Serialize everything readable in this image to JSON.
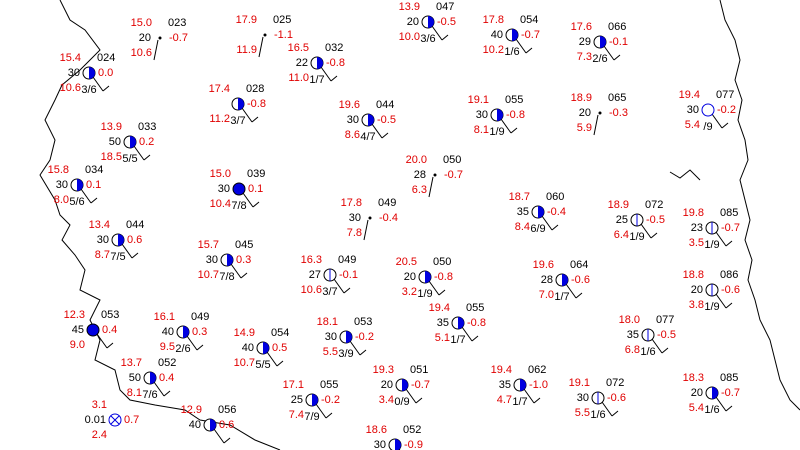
{
  "stations": [
    {
      "id": "023",
      "temp": "15.0",
      "pressure": "20",
      "dew": "10.6",
      "tendency": "-0.7"
    },
    {
      "id": "025",
      "temp": "17.9",
      "dew": "11.9",
      "tendency": "-1.1"
    },
    {
      "id": "024",
      "temp": "15.4",
      "pressure": "30",
      "dew": "10.6",
      "tendency": "0.0",
      "cloud": "3/6"
    },
    {
      "id": "032",
      "temp": "16.5",
      "pressure": "22",
      "dew": "11.0",
      "tendency": "-0.8",
      "cloud": "1/7"
    },
    {
      "id": "028",
      "temp": "17.4",
      "dew": "11.2",
      "tendency": "-0.8",
      "cloud": "3/7"
    },
    {
      "id": "047",
      "temp": "13.9",
      "pressure": "20",
      "dew": "10.0",
      "tendency": "-0.5",
      "cloud": "3/6"
    },
    {
      "id": "054",
      "temp": "17.8",
      "pressure": "40",
      "dew": "10.2",
      "tendency": "-0.7",
      "cloud": "1/6"
    },
    {
      "id": "066",
      "temp": "17.6",
      "pressure": "29",
      "dew": "7.3",
      "tendency": "-0.1",
      "cloud": "2/6"
    },
    {
      "id": "044",
      "temp": "19.6",
      "pressure": "30",
      "dew": "8.6",
      "tendency": "-0.5",
      "cloud": "4/7"
    },
    {
      "id": "055",
      "temp": "19.1",
      "pressure": "30",
      "dew": "8.1",
      "tendency": "-0.8",
      "cloud": "1/9"
    },
    {
      "id": "065",
      "temp": "18.9",
      "pressure": "20",
      "dew": "5.9",
      "tendency": "-0.3"
    },
    {
      "id": "077",
      "temp": "19.4",
      "pressure": "30",
      "dew": "5.4",
      "tendency": "-0.2",
      "cloud": "/9"
    },
    {
      "id": "033",
      "temp": "13.9",
      "pressure": "50",
      "dew": "18.5",
      "tendency": "0.2",
      "cloud": "5/5"
    },
    {
      "id": "034",
      "temp": "15.8",
      "pressure": "30",
      "dew": "8.0",
      "tendency": "0.1",
      "cloud": "5/6"
    },
    {
      "id": "039",
      "temp": "15.0",
      "pressure": "30",
      "dew": "10.4",
      "tendency": "0.1",
      "cloud": "7/8"
    },
    {
      "id": "050",
      "temp": "20.0",
      "pressure": "28",
      "dew": "6.3",
      "tendency": "-0.7"
    },
    {
      "id": "049",
      "temp": "17.8",
      "pressure": "30",
      "dew": "7.8",
      "tendency": "-0.4"
    },
    {
      "id": "060",
      "temp": "18.7",
      "pressure": "35",
      "dew": "8.4",
      "tendency": "-0.4",
      "cloud": "6/9"
    },
    {
      "id": "072",
      "temp": "18.9",
      "pressure": "25",
      "dew": "6.4",
      "tendency": "-0.5",
      "cloud": "1/9"
    },
    {
      "id": "085",
      "temp": "19.8",
      "pressure": "23",
      "dew": "3.5",
      "tendency": "-0.7",
      "cloud": "1/9"
    },
    {
      "id": "044",
      "temp": "13.4",
      "pressure": "30",
      "dew": "8.7",
      "tendency": "0.6",
      "cloud": "7/5"
    },
    {
      "id": "045",
      "temp": "15.7",
      "pressure": "30",
      "dew": "10.7",
      "tendency": "0.3",
      "cloud": "7/8"
    },
    {
      "id": "049",
      "temp": "16.3",
      "pressure": "27",
      "dew": "10.6",
      "tendency": "-0.1",
      "cloud": "3/7"
    },
    {
      "id": "050",
      "temp": "20.5",
      "pressure": "20",
      "dew": "3.2",
      "tendency": "-0.8",
      "cloud": "1/9"
    },
    {
      "id": "064",
      "temp": "19.6",
      "pressure": "28",
      "dew": "7.0",
      "tendency": "-0.6",
      "cloud": "1/7"
    },
    {
      "id": "086",
      "temp": "18.8",
      "pressure": "20",
      "dew": "3.8",
      "tendency": "-0.6",
      "cloud": "1/9"
    },
    {
      "id": "053",
      "temp": "12.3",
      "pressure": "45",
      "dew": "9.0",
      "tendency": "0.4"
    },
    {
      "id": "049",
      "temp": "16.1",
      "pressure": "40",
      "dew": "9.5",
      "tendency": "0.3",
      "cloud": "2/6"
    },
    {
      "id": "055",
      "temp": "19.4",
      "pressure": "35",
      "dew": "5.1",
      "tendency": "-0.8",
      "cloud": "1/7"
    },
    {
      "id": "053",
      "temp": "18.1",
      "pressure": "30",
      "dew": "5.5",
      "tendency": "-0.2",
      "cloud": "3/9"
    },
    {
      "id": "077",
      "temp": "18.0",
      "pressure": "35",
      "dew": "6.8",
      "tendency": "-0.5",
      "cloud": "1/6"
    },
    {
      "id": "054",
      "temp": "14.9",
      "pressure": "40",
      "dew": "10.7",
      "tendency": "0.5",
      "cloud": "5/5"
    },
    {
      "id": "052",
      "temp": "13.7",
      "pressure": "50",
      "dew": "8.1",
      "tendency": "0.4",
      "cloud": "7/6"
    },
    {
      "id": "051",
      "temp": "19.3",
      "pressure": "20",
      "dew": "3.4",
      "tendency": "-0.7",
      "cloud": "0/9"
    },
    {
      "id": "062",
      "temp": "19.4",
      "pressure": "35",
      "dew": "4.7",
      "tendency": "-1.0",
      "cloud": "1/7"
    },
    {
      "id": "072",
      "temp": "19.1",
      "pressure": "30",
      "dew": "5.5",
      "tendency": "-0.6",
      "cloud": "1/6"
    },
    {
      "id": "085",
      "temp": "18.3",
      "pressure": "20",
      "dew": "5.4",
      "tendency": "-0.7",
      "cloud": "1/6"
    },
    {
      "id": "055",
      "temp": "17.1",
      "pressure": "25",
      "dew": "7.4",
      "tendency": "-0.2",
      "cloud": "7/9"
    },
    {
      "temp": "3.1",
      "pressure": "0.01",
      "dew": "2.4",
      "tendency": "0.7"
    },
    {
      "id": "056",
      "temp": "12.9",
      "pressure": "40",
      "tendency": "0.6"
    },
    {
      "id": "052",
      "temp": "18.6",
      "pressure": "30",
      "tendency": "-0.9"
    }
  ]
}
